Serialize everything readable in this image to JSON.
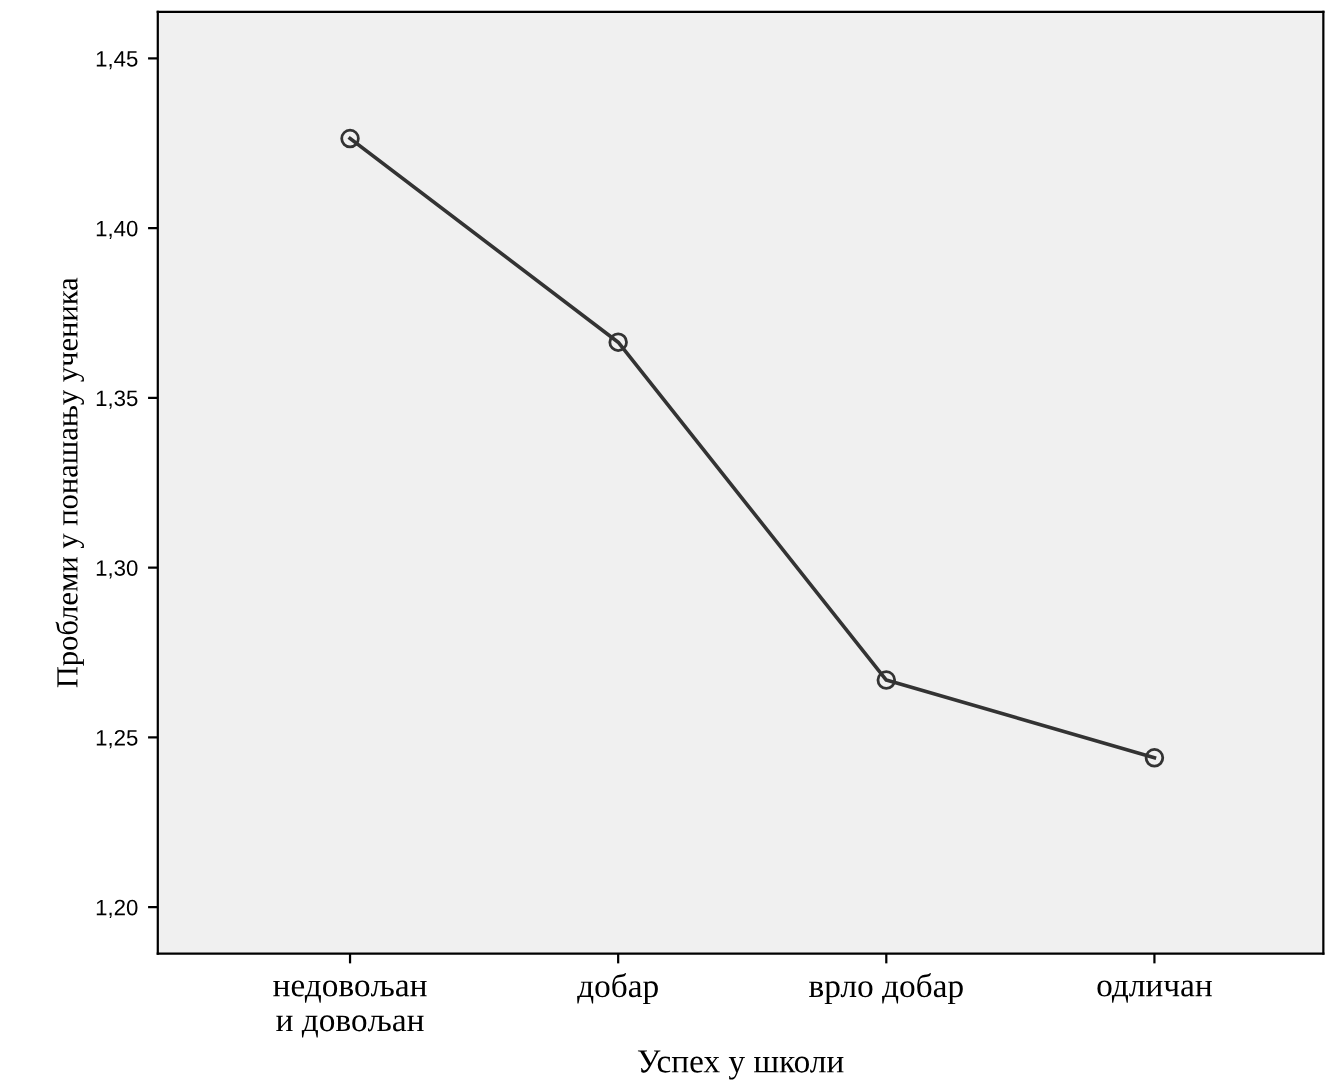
{
  "chart_data": {
    "type": "line",
    "xlabel": "Успех у школи",
    "ylabel": "Проблеми у понашању ученика",
    "categories": [
      "недовољан\nи довољан",
      "добар",
      "врло добар",
      "одличан"
    ],
    "series": [
      {
        "color": "#333333",
        "values": [
          1.4264,
          1.3664,
          1.2669,
          1.244
        ]
      }
    ],
    "ylim": [
      1.1863,
      1.4637
    ],
    "yticks": [
      {
        "value": 1.2,
        "label": "1,20"
      },
      {
        "value": 1.25,
        "label": "1,25"
      },
      {
        "value": 1.3,
        "label": "1,30"
      },
      {
        "value": 1.35,
        "label": "1,35"
      },
      {
        "value": 1.4,
        "label": "1,40"
      },
      {
        "value": 1.45,
        "label": "1,45"
      }
    ],
    "marker": "circle",
    "line_style": "solid"
  }
}
